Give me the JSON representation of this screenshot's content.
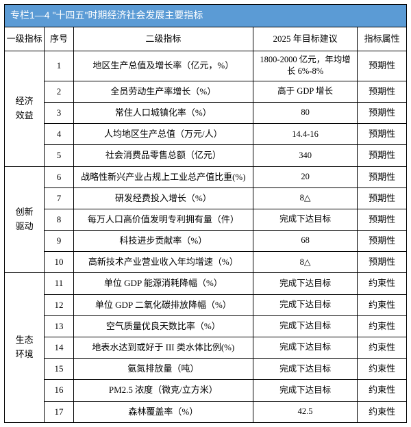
{
  "title": "专栏1—4 \"十四五\"时期经济社会发展主要指标",
  "columns": {
    "group": "一级指标",
    "seq": "序号",
    "indicator": "二级指标",
    "target": "2025 年目标建议",
    "attr": "指标属性"
  },
  "groups": [
    {
      "name": "经济\n效益",
      "rows": [
        {
          "seq": "1",
          "indicator": "地区生产总值及增长率（亿元，%）",
          "target": "1800-2000 亿元，年均增长 6%-8%",
          "attr": "预期性"
        },
        {
          "seq": "2",
          "indicator": "全员劳动生产率增长（%）",
          "target": "高于 GDP 增长",
          "attr": "预期性"
        },
        {
          "seq": "3",
          "indicator": "常住人口城镇化率（%）",
          "target": "80",
          "attr": "预期性"
        },
        {
          "seq": "4",
          "indicator": "人均地区生产总值（万元/人）",
          "target": "14.4-16",
          "attr": "预期性"
        },
        {
          "seq": "5",
          "indicator": "社会消费品零售总额（亿元）",
          "target": "340",
          "attr": "预期性"
        }
      ]
    },
    {
      "name": "创新\n驱动",
      "rows": [
        {
          "seq": "6",
          "indicator": "战略性新兴产业占规上工业总产值比重(%)",
          "target": "20",
          "attr": "预期性"
        },
        {
          "seq": "7",
          "indicator": "研发经费投入增长（%）",
          "target": "8△",
          "attr": "预期性"
        },
        {
          "seq": "8",
          "indicator": "每万人口高价值发明专利拥有量（件）",
          "target": "完成下达目标",
          "attr": "预期性"
        },
        {
          "seq": "9",
          "indicator": "科技进步贡献率（%）",
          "target": "68",
          "attr": "预期性"
        },
        {
          "seq": "10",
          "indicator": "高新技术产业营业收入年均增速（%）",
          "target": "8△",
          "attr": "预期性"
        }
      ]
    },
    {
      "name": "生态\n环境",
      "rows": [
        {
          "seq": "11",
          "indicator": "单位 GDP 能源消耗降幅（%）",
          "target": "完成下达目标",
          "attr": "约束性"
        },
        {
          "seq": "12",
          "indicator": "单位 GDP 二氧化碳排放降幅（%）",
          "target": "完成下达目标",
          "attr": "约束性"
        },
        {
          "seq": "13",
          "indicator": "空气质量优良天数比率（%）",
          "target": "完成下达目标",
          "attr": "约束性"
        },
        {
          "seq": "14",
          "indicator": "地表水达到或好于 III 类水体比例(%)",
          "target": "完成下达目标",
          "attr": "约束性"
        },
        {
          "seq": "15",
          "indicator": "氨氮排放量（吨）",
          "target": "完成下达目标",
          "attr": "约束性"
        },
        {
          "seq": "16",
          "indicator": "PM2.5 浓度（微克/立方米）",
          "target": "完成下达目标",
          "attr": "约束性"
        },
        {
          "seq": "17",
          "indicator": "森林覆盖率（%）",
          "target": "42.5",
          "attr": "约束性"
        }
      ]
    }
  ],
  "colors": {
    "header_bg": "#5b9bd5",
    "header_text": "#ffffff",
    "border": "#000000",
    "text": "#000000",
    "background": "#ffffff"
  },
  "font": {
    "family": "SimSun",
    "size_body": 13,
    "size_title": 14
  }
}
